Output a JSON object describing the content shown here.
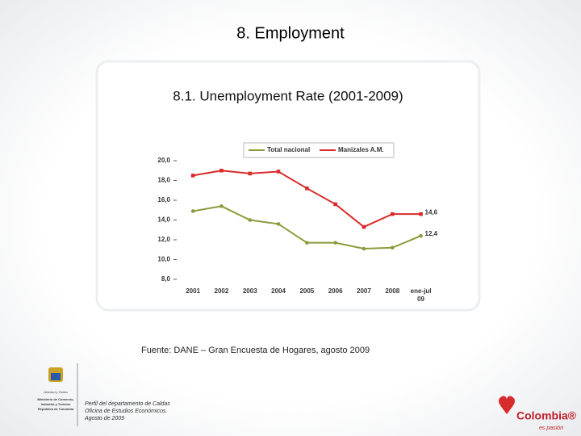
{
  "slide_title": "8. Employment",
  "chart_data": {
    "type": "line",
    "title": "8.1. Unemployment Rate (2001-2009)",
    "categories": [
      "2001",
      "2002",
      "2003",
      "2004",
      "2005",
      "2006",
      "2007",
      "2008",
      "ene-jul\n09"
    ],
    "series": [
      {
        "name": "Total nacional",
        "color": "#8c9a3c",
        "values": [
          14.9,
          15.4,
          14.0,
          13.6,
          11.7,
          11.7,
          11.1,
          11.2,
          12.4
        ],
        "value_labels": [
          null,
          null,
          null,
          null,
          null,
          null,
          null,
          null,
          "12,4"
        ]
      },
      {
        "name": "Manizales A.M.",
        "color": "#d82b2b",
        "values": [
          18.5,
          19.0,
          18.7,
          18.9,
          17.2,
          15.6,
          13.3,
          14.6,
          14.6
        ],
        "value_labels": [
          null,
          null,
          null,
          null,
          null,
          null,
          null,
          null,
          "14,6"
        ]
      }
    ],
    "ylim": [
      8,
      20
    ],
    "yticks": [
      {
        "value": 8,
        "label": "8,0"
      },
      {
        "value": 10,
        "label": "10,0"
      },
      {
        "value": 12,
        "label": "12,0"
      },
      {
        "value": 14,
        "label": "14,0"
      },
      {
        "value": 16,
        "label": "16,0"
      },
      {
        "value": 18,
        "label": "18,0"
      },
      {
        "value": 20,
        "label": "20,0"
      }
    ],
    "legend": "top",
    "source": "Fuente: DANE – Gran Encuesta de Hogares, agosto  2009"
  },
  "footer": {
    "lines": [
      "Perfil del departamento de Caldas",
      "Oficina de Estudios Económicos.",
      "Agosto de 2009"
    ],
    "ministry": [
      "Libertad y Orden",
      "Ministerio de Comercio,",
      "Industria y Turismo",
      "República de Colombia"
    ],
    "brand": "Colombia®",
    "tagline": "es pasión"
  }
}
